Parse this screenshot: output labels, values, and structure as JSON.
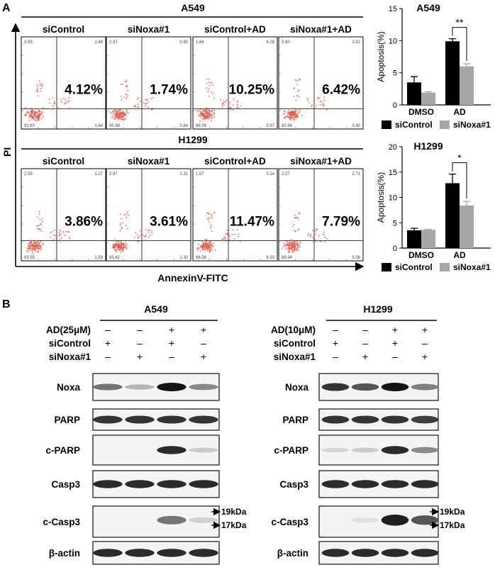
{
  "panel_a": {
    "letter": "A",
    "y_axis_label": "PI",
    "x_axis_label": "AnnexinV-FITC",
    "rows": [
      {
        "cell_line": "A549",
        "plots": [
          {
            "label": "siControl",
            "percent": "4.12%",
            "q_ul": "3.95",
            "q_ur": "2.48",
            "q_ll": "92.83",
            "q_lr": "1.64"
          },
          {
            "label": "siNoxa#1",
            "percent": "1.74%",
            "q_ul": "2.37",
            "q_ur": "0.90",
            "q_ll": "95.89",
            "q_lr": "0.84"
          },
          {
            "label": "siControl+AD",
            "percent": "10.25%",
            "q_ul": "1.66",
            "q_ur": "4.28",
            "q_ll": "88.09",
            "q_lr": "5.97"
          },
          {
            "label": "siNoxa#1+AD",
            "percent": "6.42%",
            "q_ul": "0.90",
            "q_ur": "2.52",
            "q_ll": "92.68",
            "q_lr": "3.90"
          }
        ]
      },
      {
        "cell_line": "H1299",
        "plots": [
          {
            "label": "siControl",
            "percent": "3.86%",
            "q_ul": "2.59",
            "q_ur": "1.27",
            "q_ll": "93.55",
            "q_lr": "2.59"
          },
          {
            "label": "siNoxa#1",
            "percent": "3.61%",
            "q_ul": "2.97",
            "q_ur": "1.31",
            "q_ll": "93.42",
            "q_lr": "2.30"
          },
          {
            "label": "siControl+AD",
            "percent": "11.47%",
            "q_ul": "1.97",
            "q_ur": "3.14",
            "q_ll": "86.56",
            "q_lr": "8.33"
          },
          {
            "label": "siNoxa#1+AD",
            "percent": "7.79%",
            "q_ul": "2.27",
            "q_ur": "2.71",
            "q_ll": "89.94",
            "q_lr": "5.08"
          }
        ]
      }
    ]
  },
  "chart_data": [
    {
      "type": "bar",
      "title": "A549",
      "ylabel": "Apoptosis(%)",
      "xlabel": "",
      "categories": [
        "DMSO",
        "AD"
      ],
      "ylim": [
        0,
        15
      ],
      "yticks": [
        "0",
        "5",
        "10",
        "15"
      ],
      "series": [
        {
          "name": "siControl",
          "color": "#000000",
          "values": [
            3.5,
            9.9
          ],
          "errors": [
            0.9,
            0.4
          ]
        },
        {
          "name": "siNoxa#1",
          "color": "#a6a6a6",
          "values": [
            1.9,
            6.0
          ],
          "errors": [
            0.15,
            0.4
          ]
        }
      ],
      "significance": "**",
      "legend_position": "bottom"
    },
    {
      "type": "bar",
      "title": "H1299",
      "ylabel": "Apoptosis(%)",
      "xlabel": "",
      "categories": [
        "DMSO",
        "AD"
      ],
      "ylim": [
        0,
        20
      ],
      "yticks": [
        "0",
        "5",
        "10",
        "15",
        "20"
      ],
      "series": [
        {
          "name": "siControl",
          "color": "#000000",
          "values": [
            3.5,
            12.8
          ],
          "errors": [
            0.4,
            1.8
          ]
        },
        {
          "name": "siNoxa#1",
          "color": "#a6a6a6",
          "values": [
            3.6,
            8.4
          ],
          "errors": [
            0.1,
            0.8
          ]
        }
      ],
      "significance": "*",
      "legend_position": "bottom"
    }
  ],
  "panel_b": {
    "letter": "B",
    "blots": [
      {
        "cell_line": "A549",
        "treat_rows": [
          {
            "label": "AD(25μM)",
            "signs": [
              "–",
              "–",
              "+",
              "+"
            ]
          },
          {
            "label": "siControl",
            "signs": [
              "+",
              "–",
              "+",
              "–"
            ]
          },
          {
            "label": "siNoxa#1",
            "signs": [
              "–",
              "+",
              "–",
              "+"
            ]
          }
        ],
        "proteins": [
          {
            "name": "Noxa",
            "intensity": [
              0.55,
              0.25,
              1.0,
              0.45
            ]
          },
          {
            "name": "PARP",
            "intensity": [
              0.85,
              0.85,
              0.85,
              0.85
            ]
          },
          {
            "name": "c-PARP",
            "intensity": [
              0.0,
              0.0,
              0.9,
              0.15
            ]
          },
          {
            "name": "Casp3",
            "intensity": [
              0.9,
              0.9,
              0.9,
              0.9
            ]
          },
          {
            "name": "c-Casp3",
            "intensity": [
              0.0,
              0.0,
              0.55,
              0.12
            ]
          },
          {
            "name": "β-actin",
            "intensity": [
              0.9,
              0.9,
              0.9,
              0.9
            ]
          }
        ],
        "markers": [
          "19kDa",
          "17kDa"
        ]
      },
      {
        "cell_line": "H1299",
        "treat_rows": [
          {
            "label": "AD(10μM)",
            "signs": [
              "–",
              "–",
              "+",
              "+"
            ]
          },
          {
            "label": "siControl",
            "signs": [
              "+",
              "–",
              "+",
              "–"
            ]
          },
          {
            "label": "siNoxa#1",
            "signs": [
              "–",
              "+",
              "–",
              "+"
            ]
          }
        ],
        "proteins": [
          {
            "name": "Noxa",
            "intensity": [
              0.85,
              0.7,
              1.0,
              0.5
            ]
          },
          {
            "name": "PARP",
            "intensity": [
              0.85,
              0.85,
              0.85,
              0.8
            ]
          },
          {
            "name": "c-PARP",
            "intensity": [
              0.1,
              0.15,
              0.9,
              0.45
            ]
          },
          {
            "name": "Casp3",
            "intensity": [
              0.9,
              0.9,
              0.9,
              0.9
            ]
          },
          {
            "name": "c-Casp3",
            "intensity": [
              0.0,
              0.05,
              0.95,
              0.7
            ]
          },
          {
            "name": "β-actin",
            "intensity": [
              0.9,
              0.9,
              0.9,
              0.9
            ]
          }
        ],
        "markers": [
          "19kDa",
          "17kDa"
        ]
      }
    ]
  }
}
